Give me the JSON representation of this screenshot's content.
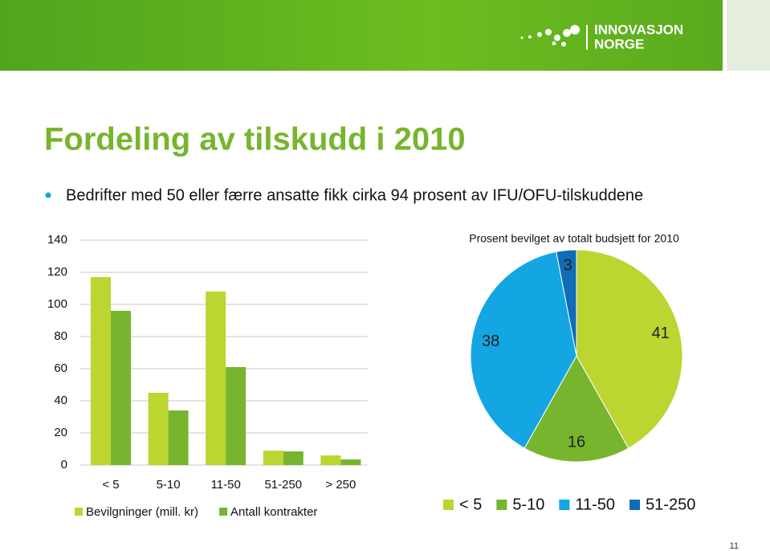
{
  "header": {
    "logo_lines": [
      "INNOVASJON",
      "NORGE"
    ]
  },
  "title": "Fordeling av tilskudd i 2010",
  "bullet": "Bedrifter med 50 eller færre ansatte fikk cirka 94 prosent av IFU/OFU-tilskuddene",
  "page_number": "11",
  "chart_data": [
    {
      "type": "bar",
      "categories": [
        "< 5",
        "5-10",
        "11-50",
        "51-250",
        "> 250"
      ],
      "series": [
        {
          "name": "Bevilgninger (mill. kr)",
          "color": "#bcd531",
          "values": [
            117,
            45,
            108,
            9,
            6
          ]
        },
        {
          "name": "Antall kontrakter",
          "color": "#78b52e",
          "values": [
            96,
            34,
            61,
            8.5,
            3.5
          ]
        }
      ],
      "ylim": [
        0,
        140
      ],
      "yticks": [
        0,
        20,
        40,
        60,
        80,
        100,
        120,
        140
      ],
      "grid": true
    },
    {
      "type": "pie",
      "title": "Prosent bevilget av totalt budsjett for 2010",
      "categories": [
        "< 5",
        "5-10",
        "11-50",
        "51-250"
      ],
      "values": [
        41,
        16,
        38,
        3
      ],
      "colors": [
        "#bcd531",
        "#78b52e",
        "#14a5e3",
        "#0f6cb6"
      ]
    }
  ]
}
